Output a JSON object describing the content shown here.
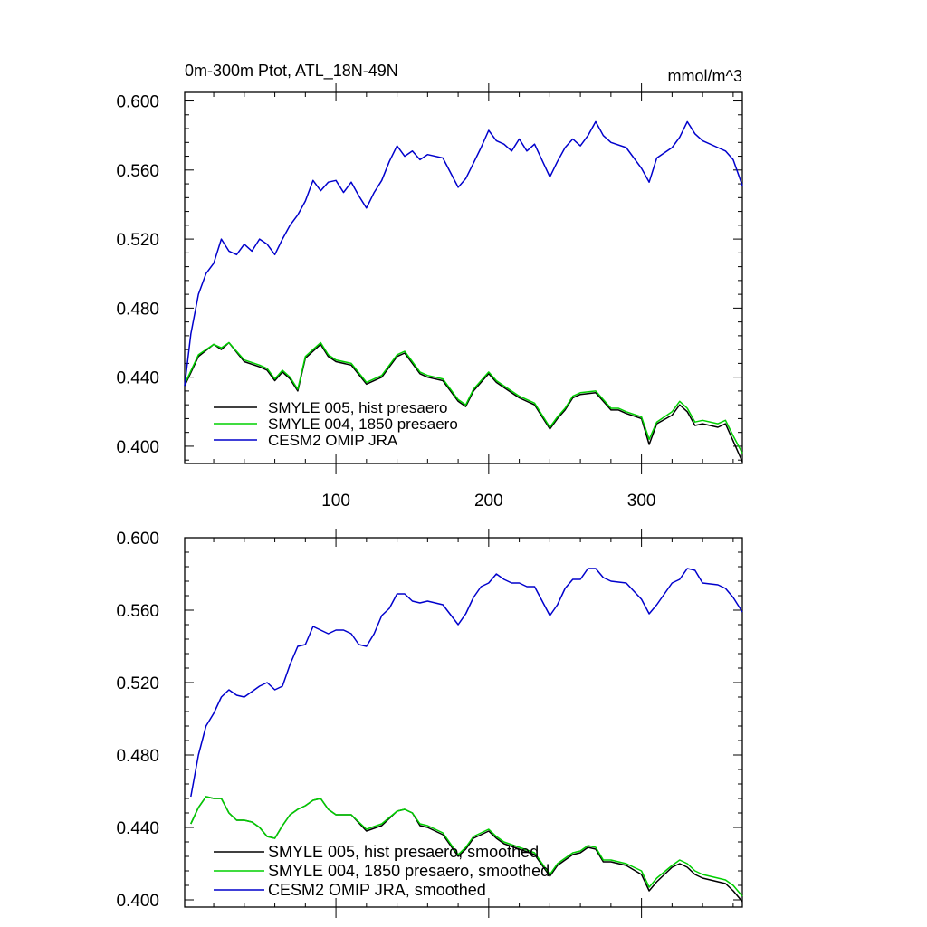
{
  "chart_data": [
    {
      "type": "line",
      "title": "0m-300m Ptot, ATL_18N-49N",
      "units": "mmol/m^3",
      "xlabel": "",
      "ylabel": "",
      "xlim": [
        1,
        366
      ],
      "ylim": [
        0.39,
        0.605
      ],
      "yticks": [
        "0.400",
        "0.440",
        "0.480",
        "0.520",
        "0.560",
        "0.600"
      ],
      "xticks": [
        "100",
        "200",
        "300"
      ],
      "legend_position": "lower-left",
      "series": [
        {
          "name": "SMYLE 005, hist presaero",
          "color": "#000000",
          "x": [
            1,
            10,
            20,
            25,
            30,
            40,
            50,
            55,
            60,
            65,
            70,
            75,
            80,
            85,
            90,
            95,
            100,
            110,
            120,
            130,
            140,
            145,
            150,
            155,
            160,
            170,
            180,
            185,
            190,
            200,
            205,
            210,
            220,
            230,
            240,
            245,
            250,
            255,
            260,
            270,
            280,
            285,
            290,
            300,
            305,
            310,
            320,
            325,
            330,
            335,
            340,
            350,
            355,
            360,
            366
          ],
          "values": [
            0.435,
            0.452,
            0.459,
            0.456,
            0.46,
            0.449,
            0.446,
            0.444,
            0.438,
            0.443,
            0.439,
            0.432,
            0.451,
            0.455,
            0.459,
            0.452,
            0.449,
            0.447,
            0.436,
            0.44,
            0.452,
            0.454,
            0.448,
            0.442,
            0.44,
            0.438,
            0.426,
            0.423,
            0.432,
            0.442,
            0.437,
            0.434,
            0.428,
            0.424,
            0.41,
            0.416,
            0.421,
            0.428,
            0.43,
            0.431,
            0.421,
            0.421,
            0.419,
            0.416,
            0.401,
            0.413,
            0.418,
            0.424,
            0.42,
            0.412,
            0.413,
            0.411,
            0.413,
            0.403,
            0.391
          ]
        },
        {
          "name": "SMYLE 004, 1850 presaero",
          "color": "#00d000",
          "x": [
            1,
            10,
            20,
            25,
            30,
            40,
            50,
            55,
            60,
            65,
            70,
            75,
            80,
            85,
            90,
            95,
            100,
            110,
            120,
            130,
            140,
            145,
            150,
            155,
            160,
            170,
            180,
            185,
            190,
            200,
            205,
            210,
            220,
            230,
            240,
            245,
            250,
            255,
            260,
            270,
            280,
            285,
            290,
            300,
            305,
            310,
            320,
            325,
            330,
            335,
            340,
            350,
            355,
            360,
            366
          ],
          "values": [
            0.436,
            0.453,
            0.459,
            0.457,
            0.46,
            0.45,
            0.447,
            0.445,
            0.439,
            0.444,
            0.44,
            0.433,
            0.452,
            0.456,
            0.46,
            0.453,
            0.45,
            0.448,
            0.437,
            0.441,
            0.453,
            0.455,
            0.449,
            0.443,
            0.441,
            0.439,
            0.427,
            0.424,
            0.433,
            0.443,
            0.438,
            0.435,
            0.429,
            0.425,
            0.411,
            0.417,
            0.422,
            0.429,
            0.431,
            0.432,
            0.422,
            0.422,
            0.42,
            0.417,
            0.404,
            0.414,
            0.42,
            0.426,
            0.422,
            0.414,
            0.415,
            0.413,
            0.415,
            0.406,
            0.396
          ]
        },
        {
          "name": "CESM2 OMIP JRA",
          "color": "#0000cc",
          "x": [
            1,
            5,
            10,
            15,
            20,
            25,
            30,
            35,
            40,
            45,
            50,
            55,
            60,
            65,
            70,
            75,
            80,
            85,
            90,
            95,
            100,
            105,
            110,
            115,
            120,
            125,
            130,
            135,
            140,
            145,
            150,
            155,
            160,
            170,
            180,
            185,
            190,
            195,
            200,
            205,
            210,
            215,
            220,
            225,
            230,
            240,
            245,
            250,
            255,
            260,
            265,
            270,
            275,
            280,
            290,
            300,
            305,
            310,
            320,
            325,
            330,
            335,
            340,
            350,
            355,
            360,
            366
          ],
          "values": [
            0.435,
            0.465,
            0.488,
            0.5,
            0.506,
            0.52,
            0.513,
            0.511,
            0.517,
            0.513,
            0.52,
            0.517,
            0.511,
            0.52,
            0.528,
            0.534,
            0.542,
            0.554,
            0.548,
            0.553,
            0.554,
            0.547,
            0.553,
            0.545,
            0.538,
            0.547,
            0.554,
            0.565,
            0.574,
            0.568,
            0.571,
            0.566,
            0.569,
            0.567,
            0.55,
            0.555,
            0.564,
            0.573,
            0.583,
            0.577,
            0.575,
            0.571,
            0.578,
            0.571,
            0.575,
            0.556,
            0.565,
            0.573,
            0.578,
            0.574,
            0.58,
            0.588,
            0.58,
            0.576,
            0.573,
            0.561,
            0.553,
            0.567,
            0.573,
            0.579,
            0.588,
            0.581,
            0.577,
            0.573,
            0.571,
            0.566,
            0.551
          ]
        }
      ]
    },
    {
      "type": "line",
      "title": "",
      "xlabel": "",
      "ylabel": "",
      "xlim": [
        1,
        366
      ],
      "ylim": [
        0.396,
        0.6
      ],
      "yticks": [
        "0.400",
        "0.440",
        "0.480",
        "0.520",
        "0.560",
        "0.600"
      ],
      "legend_position": "lower-left",
      "series": [
        {
          "name": "SMYLE 005, hist presaero, smoothed",
          "color": "#000000",
          "x": [
            5,
            10,
            15,
            20,
            25,
            30,
            35,
            40,
            45,
            50,
            55,
            60,
            65,
            70,
            75,
            80,
            85,
            90,
            95,
            100,
            110,
            120,
            130,
            140,
            145,
            150,
            155,
            160,
            170,
            180,
            185,
            190,
            200,
            205,
            210,
            220,
            230,
            240,
            245,
            250,
            255,
            260,
            265,
            270,
            275,
            280,
            290,
            300,
            305,
            310,
            320,
            325,
            330,
            335,
            340,
            350,
            355,
            360,
            366
          ],
          "values": [
            0.442,
            0.451,
            0.457,
            0.456,
            0.456,
            0.448,
            0.444,
            0.444,
            0.443,
            0.44,
            0.435,
            0.434,
            0.441,
            0.447,
            0.45,
            0.452,
            0.455,
            0.456,
            0.45,
            0.447,
            0.447,
            0.438,
            0.441,
            0.449,
            0.45,
            0.448,
            0.441,
            0.44,
            0.436,
            0.424,
            0.428,
            0.434,
            0.438,
            0.434,
            0.431,
            0.428,
            0.425,
            0.413,
            0.419,
            0.422,
            0.425,
            0.426,
            0.429,
            0.428,
            0.421,
            0.421,
            0.419,
            0.414,
            0.405,
            0.41,
            0.418,
            0.42,
            0.418,
            0.414,
            0.412,
            0.41,
            0.409,
            0.405,
            0.399
          ]
        },
        {
          "name": "SMYLE 004, 1850 presaero, smoothed",
          "color": "#00d000",
          "x": [
            5,
            10,
            15,
            20,
            25,
            30,
            35,
            40,
            45,
            50,
            55,
            60,
            65,
            70,
            75,
            80,
            85,
            90,
            95,
            100,
            110,
            120,
            130,
            140,
            145,
            150,
            155,
            160,
            170,
            180,
            185,
            190,
            200,
            205,
            210,
            220,
            230,
            240,
            245,
            250,
            255,
            260,
            265,
            270,
            275,
            280,
            290,
            300,
            305,
            310,
            320,
            325,
            330,
            335,
            340,
            350,
            355,
            360,
            366
          ],
          "values": [
            0.442,
            0.451,
            0.457,
            0.456,
            0.456,
            0.448,
            0.444,
            0.444,
            0.443,
            0.44,
            0.435,
            0.434,
            0.441,
            0.447,
            0.45,
            0.452,
            0.455,
            0.456,
            0.45,
            0.447,
            0.447,
            0.439,
            0.442,
            0.449,
            0.45,
            0.448,
            0.442,
            0.441,
            0.437,
            0.425,
            0.429,
            0.435,
            0.439,
            0.435,
            0.432,
            0.429,
            0.426,
            0.414,
            0.42,
            0.423,
            0.426,
            0.427,
            0.43,
            0.429,
            0.422,
            0.422,
            0.42,
            0.416,
            0.407,
            0.412,
            0.419,
            0.422,
            0.42,
            0.416,
            0.414,
            0.412,
            0.411,
            0.408,
            0.402
          ]
        },
        {
          "name": "CESM2 OMIP JRA, smoothed",
          "color": "#0000cc",
          "x": [
            5,
            10,
            15,
            20,
            25,
            30,
            35,
            40,
            45,
            50,
            55,
            60,
            65,
            70,
            75,
            80,
            85,
            90,
            95,
            100,
            105,
            110,
            115,
            120,
            125,
            130,
            135,
            140,
            145,
            150,
            155,
            160,
            170,
            180,
            185,
            190,
            195,
            200,
            205,
            210,
            215,
            220,
            225,
            230,
            240,
            245,
            250,
            255,
            260,
            265,
            270,
            275,
            280,
            290,
            300,
            305,
            310,
            320,
            325,
            330,
            335,
            340,
            350,
            355,
            360,
            366
          ],
          "values": [
            0.457,
            0.48,
            0.496,
            0.503,
            0.512,
            0.516,
            0.513,
            0.512,
            0.515,
            0.518,
            0.52,
            0.516,
            0.518,
            0.53,
            0.54,
            0.541,
            0.551,
            0.549,
            0.547,
            0.549,
            0.549,
            0.547,
            0.541,
            0.54,
            0.547,
            0.557,
            0.561,
            0.569,
            0.569,
            0.565,
            0.564,
            0.565,
            0.563,
            0.552,
            0.558,
            0.567,
            0.573,
            0.575,
            0.58,
            0.577,
            0.575,
            0.575,
            0.573,
            0.573,
            0.557,
            0.563,
            0.572,
            0.577,
            0.577,
            0.583,
            0.583,
            0.578,
            0.576,
            0.575,
            0.566,
            0.558,
            0.563,
            0.575,
            0.577,
            0.583,
            0.582,
            0.575,
            0.574,
            0.572,
            0.567,
            0.559
          ]
        }
      ]
    }
  ]
}
